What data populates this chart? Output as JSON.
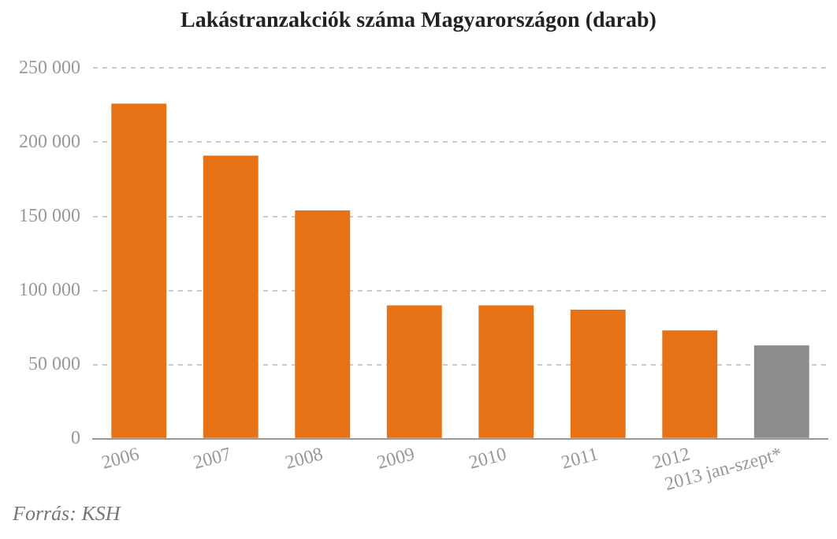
{
  "chart_data": {
    "type": "bar",
    "title": "Lakástranzakciók száma Magyarországon (darab)",
    "categories": [
      "2006",
      "2007",
      "2008",
      "2009",
      "2010",
      "2011",
      "2012",
      "2013 jan-szept*"
    ],
    "values": [
      226000,
      191000,
      154000,
      90000,
      90000,
      87000,
      73000,
      63000
    ],
    "colors": [
      "#e67215",
      "#e67215",
      "#e67215",
      "#e67215",
      "#e67215",
      "#e67215",
      "#e67215",
      "#8c8c8c"
    ],
    "ylim": [
      0,
      250000
    ],
    "yticks": [
      {
        "value": 0,
        "label": "0"
      },
      {
        "value": 50000,
        "label": "50 000"
      },
      {
        "value": 100000,
        "label": "100 000"
      },
      {
        "value": 150000,
        "label": "150 000"
      },
      {
        "value": 200000,
        "label": "200 000"
      },
      {
        "value": 250000,
        "label": "250 000"
      }
    ],
    "grid": "y",
    "legend": false,
    "annotations": [
      "Forrás: KSH"
    ]
  }
}
